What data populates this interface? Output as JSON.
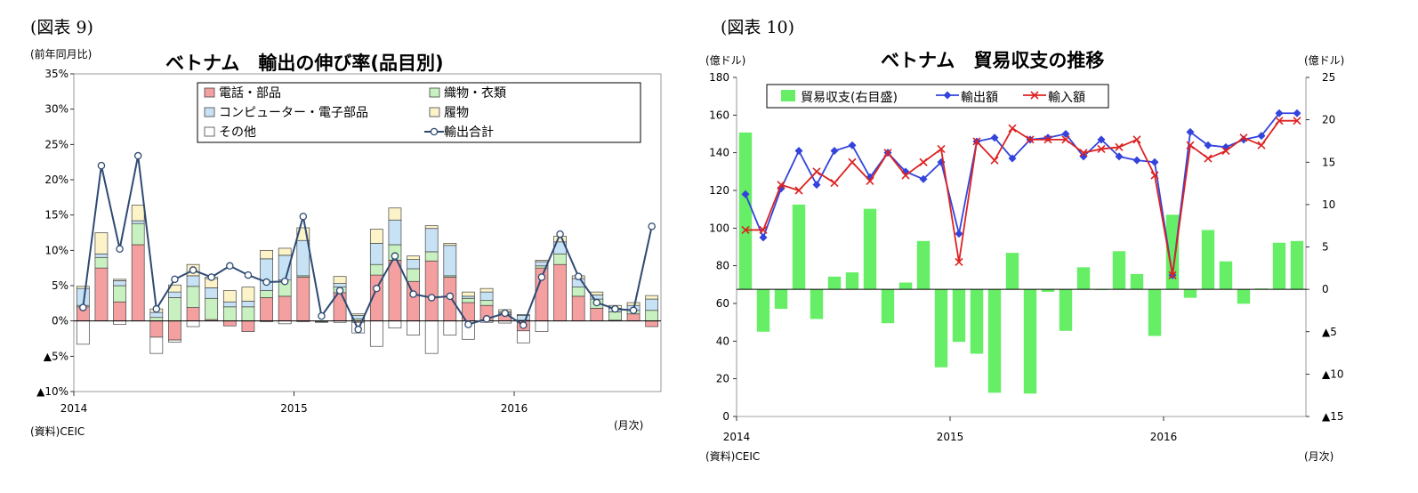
{
  "left": {
    "figure_label": "(図表 9)",
    "unit_label": "(前年同月比)",
    "source_label": "(資料)CEIC",
    "period_label": "(月次)",
    "chart_data": {
      "type": "bar",
      "title": "ベトナム　輸出の伸び率(品目別)",
      "stacked": true,
      "ylim": [
        -10,
        35
      ],
      "y_ticks": [
        {
          "v": 35,
          "label": "35%"
        },
        {
          "v": 30,
          "label": "30%"
        },
        {
          "v": 25,
          "label": "25%"
        },
        {
          "v": 20,
          "label": "20%"
        },
        {
          "v": 15,
          "label": "15%"
        },
        {
          "v": 10,
          "label": "10%"
        },
        {
          "v": 5,
          "label": "5%"
        },
        {
          "v": 0,
          "label": "0%"
        },
        {
          "v": -5,
          "label": "▲5%"
        },
        {
          "v": -10,
          "label": "▲10%"
        }
      ],
      "x_ticks": [
        {
          "i": 0,
          "label": "2014"
        },
        {
          "i": 12,
          "label": "2015"
        },
        {
          "i": 24,
          "label": "2016"
        }
      ],
      "categories": [
        "2014-01",
        "2014-02",
        "2014-03",
        "2014-04",
        "2014-05",
        "2014-06",
        "2014-07",
        "2014-08",
        "2014-09",
        "2014-10",
        "2014-11",
        "2014-12",
        "2015-01",
        "2015-02",
        "2015-03",
        "2015-04",
        "2015-05",
        "2015-06",
        "2015-07",
        "2015-08",
        "2015-09",
        "2015-10",
        "2015-11",
        "2015-12",
        "2016-01",
        "2016-02",
        "2016-03",
        "2016-04",
        "2016-05",
        "2016-06",
        "2016-07",
        "2016-08"
      ],
      "legend_position": "top-right",
      "series": [
        {
          "name": "電話・部品",
          "kind": "bar",
          "color": "#f4a0a0",
          "values": [
            2.0,
            7.5,
            2.7,
            10.8,
            -2.3,
            -2.7,
            1.9,
            0.2,
            -0.7,
            -1.5,
            3.3,
            3.5,
            6.2,
            -0.1,
            4.0,
            -0.2,
            6.5,
            8.6,
            5.6,
            8.5,
            6.2,
            2.6,
            2.2,
            0.9,
            -1.4,
            7.5,
            8.0,
            3.5,
            1.8,
            0.1,
            1.0,
            -0.8
          ]
        },
        {
          "name": "織物・衣類",
          "kind": "bar",
          "color": "#c9f0c0",
          "values": [
            0.2,
            1.5,
            2.3,
            3.0,
            0.5,
            3.3,
            3.0,
            3.0,
            2.0,
            2.0,
            1.0,
            2.3,
            0.2,
            0.0,
            0.8,
            0.3,
            1.5,
            2.2,
            1.8,
            1.3,
            0.2,
            0.6,
            0.7,
            0.2,
            0.1,
            0.3,
            1.5,
            1.3,
            1.3,
            1.2,
            0.5,
            1.5
          ]
        },
        {
          "name": "コンピューター・電子部品",
          "kind": "bar",
          "color": "#c8e2f5",
          "values": [
            2.4,
            0.5,
            0.7,
            0.4,
            0.7,
            0.8,
            1.5,
            1.5,
            0.7,
            0.8,
            4.5,
            3.5,
            5.0,
            -0.1,
            0.5,
            0.5,
            3.0,
            3.5,
            1.3,
            3.3,
            4.3,
            0.3,
            1.2,
            0.2,
            0.7,
            0.6,
            1.7,
            1.2,
            0.6,
            0.5,
            0.7,
            1.6
          ]
        },
        {
          "name": "履物",
          "kind": "bar",
          "color": "#fcf3c8",
          "values": [
            0.3,
            3.0,
            0.2,
            2.2,
            0.5,
            1.0,
            1.6,
            1.3,
            1.6,
            2.0,
            1.2,
            1.0,
            1.8,
            0.0,
            1.0,
            0.2,
            2.0,
            1.7,
            0.5,
            0.4,
            0.3,
            0.6,
            0.5,
            0.3,
            0.1,
            0.2,
            0.8,
            0.4,
            0.4,
            0.4,
            0.4,
            0.5
          ]
        },
        {
          "name": "その他",
          "kind": "bar",
          "color": "#ffffff",
          "values": [
            -3.3,
            0.0,
            -0.5,
            0.0,
            -2.3,
            -0.3,
            -0.8,
            0.2,
            0.0,
            0.0,
            -0.1,
            -0.4,
            -0.1,
            0.0,
            -0.2,
            -1.5,
            -3.6,
            -1.0,
            -2.0,
            -4.6,
            -2.0,
            -2.6,
            -0.2,
            -0.3,
            -1.7,
            -1.5,
            0.0,
            0.0,
            0.0,
            0.0,
            0.0,
            0.0
          ]
        },
        {
          "name": "輸出合計",
          "kind": "line",
          "color": "#2f4a72",
          "values": [
            1.9,
            22.0,
            10.2,
            23.4,
            1.7,
            5.9,
            7.2,
            6.2,
            7.8,
            6.5,
            5.5,
            5.6,
            14.8,
            0.7,
            4.3,
            -1.2,
            4.6,
            9.2,
            3.8,
            3.3,
            3.5,
            -0.5,
            0.3,
            1.1,
            -0.6,
            6.2,
            12.3,
            6.3,
            2.6,
            1.7,
            1.5,
            13.4
          ]
        }
      ]
    }
  },
  "right": {
    "figure_label": "(図表 10)",
    "unit_left_label": "(億ドル)",
    "unit_right_label": "(億ドル)",
    "source_label": "(資料)CEIC",
    "period_label": "(月次)",
    "chart_data": {
      "type": "bar",
      "title": "ベトナム　貿易収支の推移",
      "ylim_left": [
        0,
        180
      ],
      "ylim_right": [
        -15,
        25
      ],
      "y_ticks_left": [
        {
          "v": 180,
          "label": "180"
        },
        {
          "v": 160,
          "label": "160"
        },
        {
          "v": 140,
          "label": "140"
        },
        {
          "v": 120,
          "label": "120"
        },
        {
          "v": 100,
          "label": "100"
        },
        {
          "v": 80,
          "label": "80"
        },
        {
          "v": 60,
          "label": "60"
        },
        {
          "v": 40,
          "label": "40"
        },
        {
          "v": 20,
          "label": "20"
        },
        {
          "v": 0,
          "label": "0"
        }
      ],
      "y_ticks_right": [
        {
          "v": 25,
          "label": "25"
        },
        {
          "v": 20,
          "label": "20"
        },
        {
          "v": 15,
          "label": "15"
        },
        {
          "v": 10,
          "label": "10"
        },
        {
          "v": 5,
          "label": "5"
        },
        {
          "v": 0,
          "label": "0"
        },
        {
          "v": -5,
          "label": "▲5"
        },
        {
          "v": -10,
          "label": "▲10"
        },
        {
          "v": -15,
          "label": "▲15"
        }
      ],
      "x_ticks": [
        {
          "i": 0,
          "label": "2014"
        },
        {
          "i": 12,
          "label": "2015"
        },
        {
          "i": 24,
          "label": "2016"
        }
      ],
      "categories": [
        "2014-01",
        "2014-02",
        "2014-03",
        "2014-04",
        "2014-05",
        "2014-06",
        "2014-07",
        "2014-08",
        "2014-09",
        "2014-10",
        "2014-11",
        "2014-12",
        "2015-01",
        "2015-02",
        "2015-03",
        "2015-04",
        "2015-05",
        "2015-06",
        "2015-07",
        "2015-08",
        "2015-09",
        "2015-10",
        "2015-11",
        "2015-12",
        "2016-01",
        "2016-02",
        "2016-03",
        "2016-04",
        "2016-05",
        "2016-06",
        "2016-07",
        "2016-08"
      ],
      "legend_position": "top-left",
      "series": [
        {
          "name": "貿易収支(右目盛)",
          "kind": "bar",
          "axis": "right",
          "color": "#66ee66",
          "values": [
            18.5,
            -5.0,
            -2.3,
            10.0,
            -3.5,
            1.5,
            2.0,
            9.5,
            -4.0,
            0.8,
            5.7,
            -9.2,
            -6.2,
            -7.6,
            -12.2,
            4.3,
            -12.3,
            -0.3,
            -4.9,
            2.6,
            0.0,
            4.5,
            1.8,
            -5.5,
            8.8,
            -1.0,
            7.0,
            3.3,
            -1.7,
            0.1,
            5.5,
            5.7
          ]
        },
        {
          "name": "輸出額",
          "kind": "line",
          "axis": "left",
          "color": "#3344dd",
          "marker": "diamond",
          "values": [
            118,
            95,
            121,
            141,
            123,
            141,
            144,
            127,
            140,
            130,
            126,
            135,
            97,
            146,
            148,
            137,
            147,
            148,
            150,
            138,
            147,
            138,
            136,
            135,
            75,
            151,
            144,
            143,
            147,
            149,
            161,
            161
          ]
        },
        {
          "name": "輸入額",
          "kind": "line",
          "axis": "left",
          "color": "#dd2222",
          "marker": "x",
          "values": [
            99,
            99,
            123,
            120,
            130,
            124,
            135,
            125,
            140,
            128,
            135,
            142,
            82,
            146,
            136,
            153,
            147,
            147,
            147,
            140,
            142,
            143,
            147,
            128,
            75,
            144,
            137,
            141,
            148,
            144,
            157,
            157
          ]
        }
      ]
    }
  }
}
